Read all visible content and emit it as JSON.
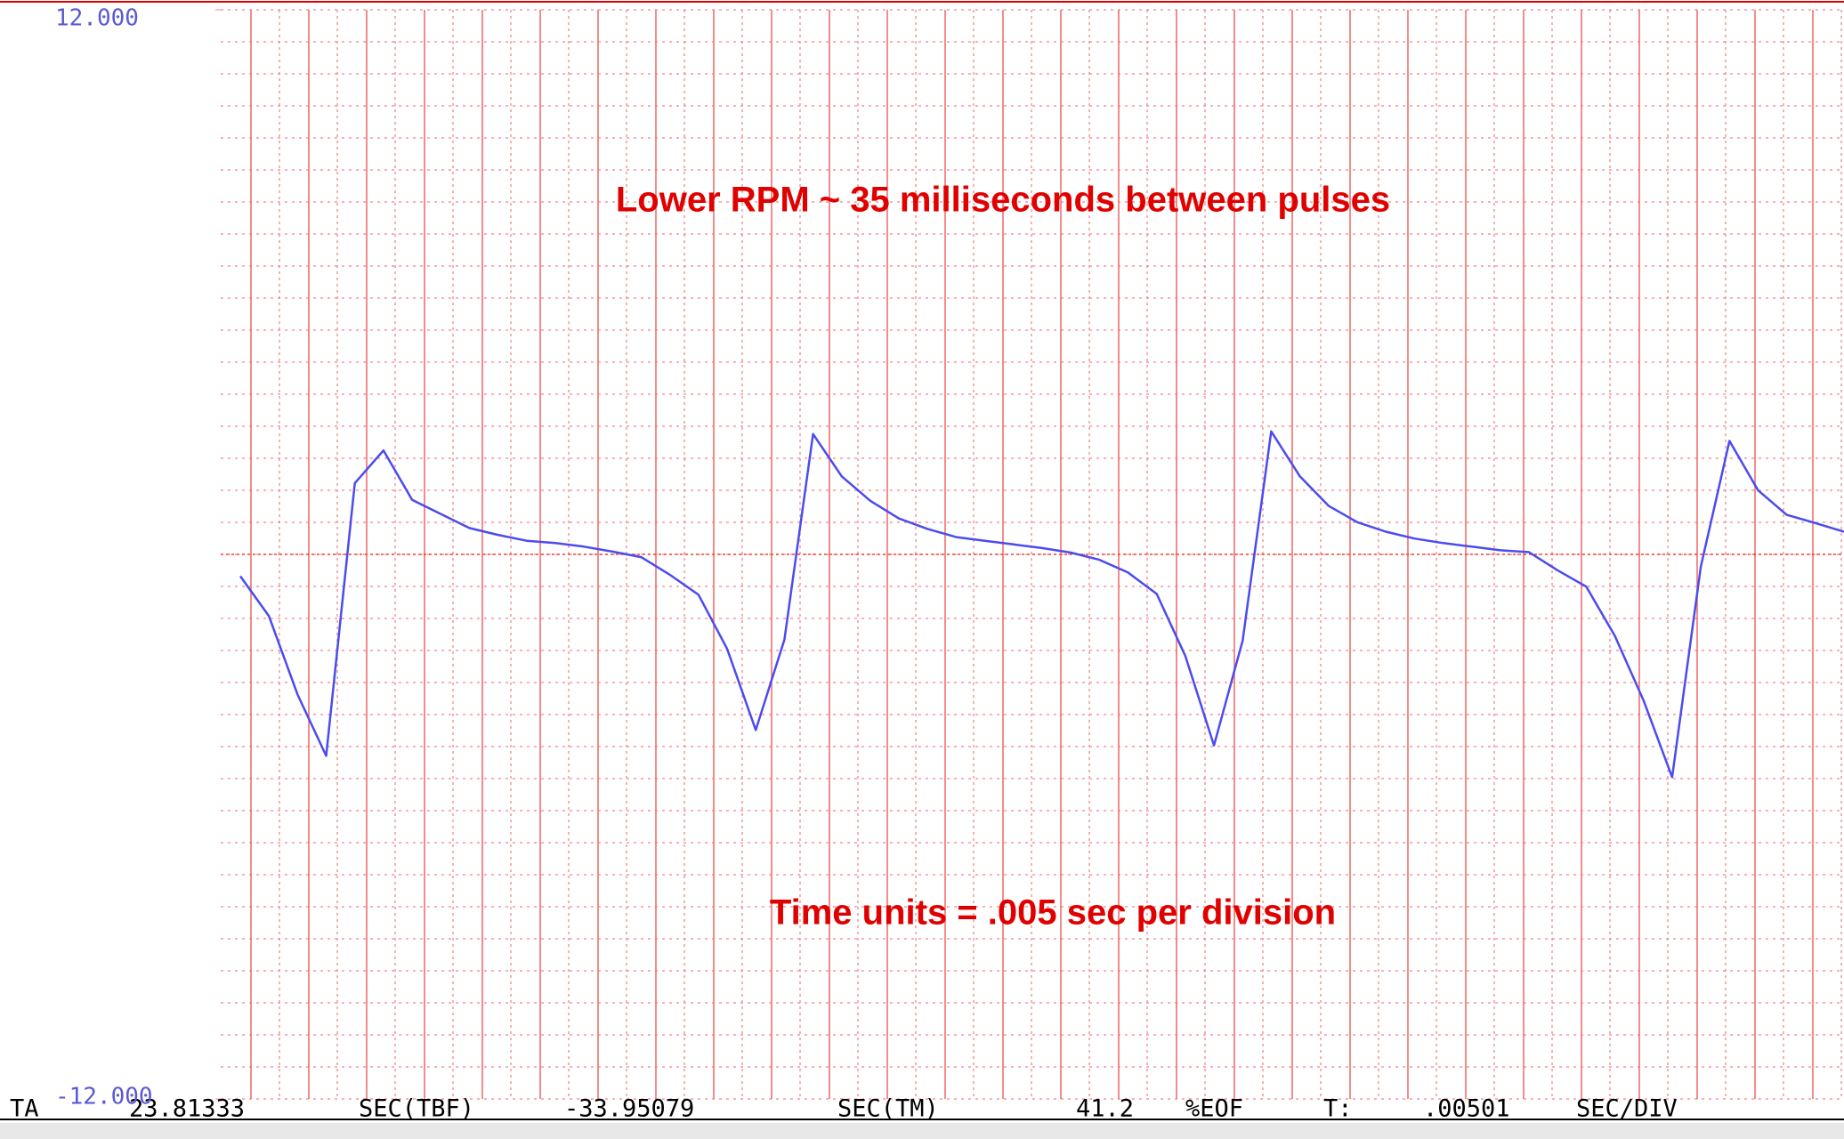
{
  "chart_data": {
    "type": "line",
    "annotations": [
      "Lower RPM ~ 35 milliseconds between pulses",
      "Time units = .005 sec per division"
    ],
    "color": "#4b4bf0",
    "ylim": [
      -12,
      12
    ],
    "yticks": [
      {
        "value": -12,
        "label": "-12.000"
      },
      {
        "value": 12,
        "label": "12.000"
      }
    ],
    "grid": true,
    "values": [
      -0.48,
      -1.36,
      -3.09,
      -4.44,
      1.57,
      2.29,
      1.2,
      0.89,
      0.58,
      0.43,
      0.3,
      0.25,
      0.17,
      0.06,
      -0.06,
      -0.45,
      -0.89,
      -2.08,
      -3.87,
      -1.88,
      2.65,
      1.72,
      1.18,
      0.79,
      0.56,
      0.38,
      0.3,
      0.22,
      0.14,
      0.04,
      -0.12,
      -0.4,
      -0.87,
      -2.24,
      -4.21,
      -1.9,
      2.71,
      1.72,
      1.07,
      0.71,
      0.5,
      0.35,
      0.25,
      0.17,
      0.09,
      0.05,
      -0.35,
      -0.71,
      -1.8,
      -3.22,
      -4.91,
      -0.27,
      2.5,
      1.41,
      0.87,
      0.69,
      0.5
    ]
  },
  "status": [
    "TA",
    "23.81333",
    "SEC(TBF)",
    "-33.95079",
    "SEC(TM)",
    "41.2",
    "%EOF",
    "T:",
    ".00501",
    "SEC/DIV"
  ]
}
